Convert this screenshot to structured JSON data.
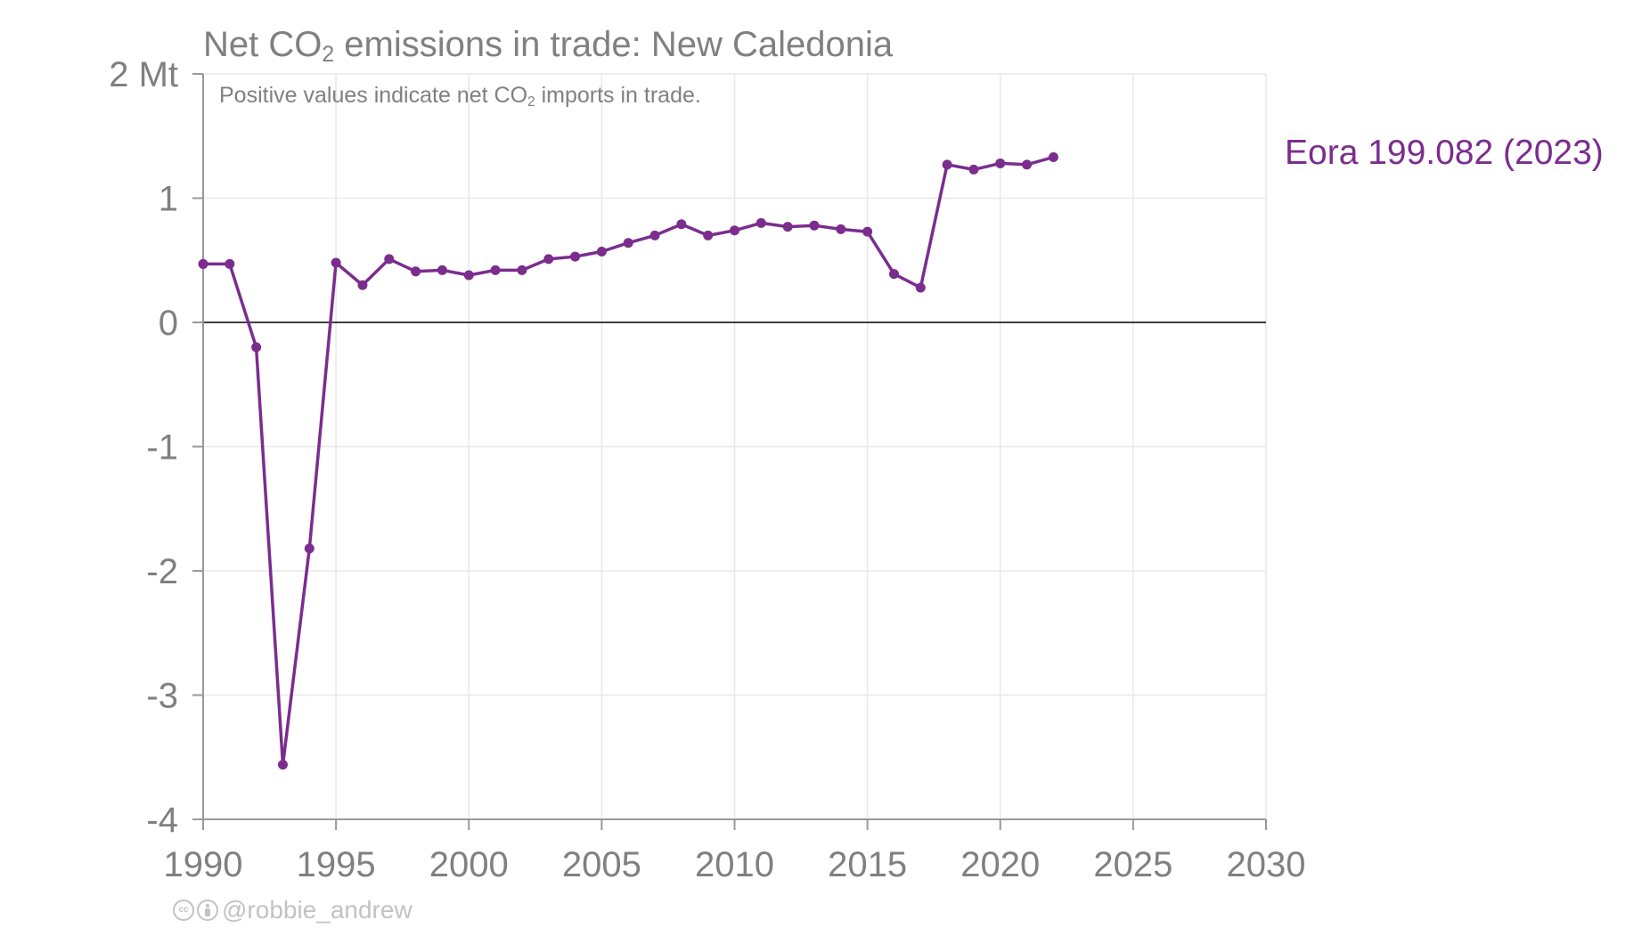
{
  "colors": {
    "series": "#7B2D8E",
    "text": "#808080",
    "grid": "#e8e8e8",
    "axis": "#999999",
    "zero_line": "#000000",
    "credit": "#c2c2c2"
  },
  "title": {
    "prefix": "Net CO",
    "sub": "2",
    "suffix": " emissions in trade: New Caledonia"
  },
  "subtitle": {
    "prefix": "Positive values indicate net CO",
    "sub": "2",
    "suffix": " imports in trade."
  },
  "series_label": "Eora 199.082 (2023)",
  "credit": {
    "cc_icon": "creative-commons-icon",
    "by_icon": "attribution-icon",
    "handle": "@robbie_andrew"
  },
  "chart_data": {
    "type": "line",
    "title": "Net CO2 emissions in trade: New Caledonia",
    "subtitle": "Positive values indicate net CO2 imports in trade.",
    "xlabel": "",
    "ylabel": "Mt",
    "xlim": [
      1990,
      2030
    ],
    "ylim": [
      -4,
      2
    ],
    "x_ticks": [
      1990,
      1995,
      2000,
      2005,
      2010,
      2015,
      2020,
      2025,
      2030
    ],
    "x_tick_labels": [
      "1990",
      "1995",
      "2000",
      "2005",
      "2010",
      "2015",
      "2020",
      "2025",
      "2030"
    ],
    "y_ticks": [
      -4,
      -3,
      -2,
      -1,
      0,
      1,
      2
    ],
    "y_tick_labels": [
      "-4",
      "-3",
      "-2",
      "-1",
      "0",
      "1",
      "2 Mt"
    ],
    "grid": true,
    "zero_line": true,
    "series": [
      {
        "name": "Eora 199.082 (2023)",
        "x": [
          1990,
          1991,
          1992,
          1993,
          1994,
          1995,
          1996,
          1997,
          1998,
          1999,
          2000,
          2001,
          2002,
          2003,
          2004,
          2005,
          2006,
          2007,
          2008,
          2009,
          2010,
          2011,
          2012,
          2013,
          2014,
          2015,
          2016,
          2017,
          2018,
          2019,
          2020,
          2021,
          2022
        ],
        "values": [
          0.47,
          0.47,
          -0.2,
          -3.56,
          -1.82,
          0.48,
          0.3,
          0.51,
          0.41,
          0.42,
          0.38,
          0.42,
          0.42,
          0.51,
          0.53,
          0.57,
          0.64,
          0.7,
          0.79,
          0.7,
          0.74,
          0.8,
          0.77,
          0.78,
          0.75,
          0.73,
          0.39,
          0.28,
          1.27,
          1.23,
          1.28,
          1.27,
          1.33
        ]
      }
    ]
  }
}
